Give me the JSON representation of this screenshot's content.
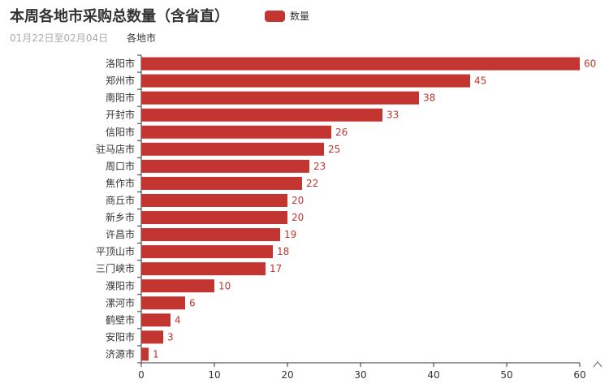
{
  "colors": {
    "bar": "#c23531",
    "axis": "#333333",
    "grid": "#cccccc"
  },
  "chart_data": {
    "type": "bar",
    "orientation": "horizontal",
    "title": "本周各地市采购总数量（含省直）",
    "subtitle": "01月22日至02月04日",
    "ylabel": "各地市",
    "xlim": [
      0,
      60
    ],
    "x_ticks": [
      0,
      10,
      20,
      30,
      40,
      50,
      60
    ],
    "grid": false,
    "legend_position": "top",
    "series": [
      {
        "name": "数量",
        "values": [
          60,
          45,
          38,
          33,
          26,
          25,
          23,
          22,
          20,
          20,
          19,
          18,
          17,
          10,
          6,
          4,
          3,
          1
        ]
      }
    ],
    "categories": [
      "洛阳市",
      "郑州市",
      "南阳市",
      "开封市",
      "信阳市",
      "驻马店市",
      "周口市",
      "焦作市",
      "商丘市",
      "新乡市",
      "许昌市",
      "平顶山市",
      "三门峡市",
      "濮阳市",
      "漯河市",
      "鹤壁市",
      "安阳市",
      "济源市"
    ]
  }
}
